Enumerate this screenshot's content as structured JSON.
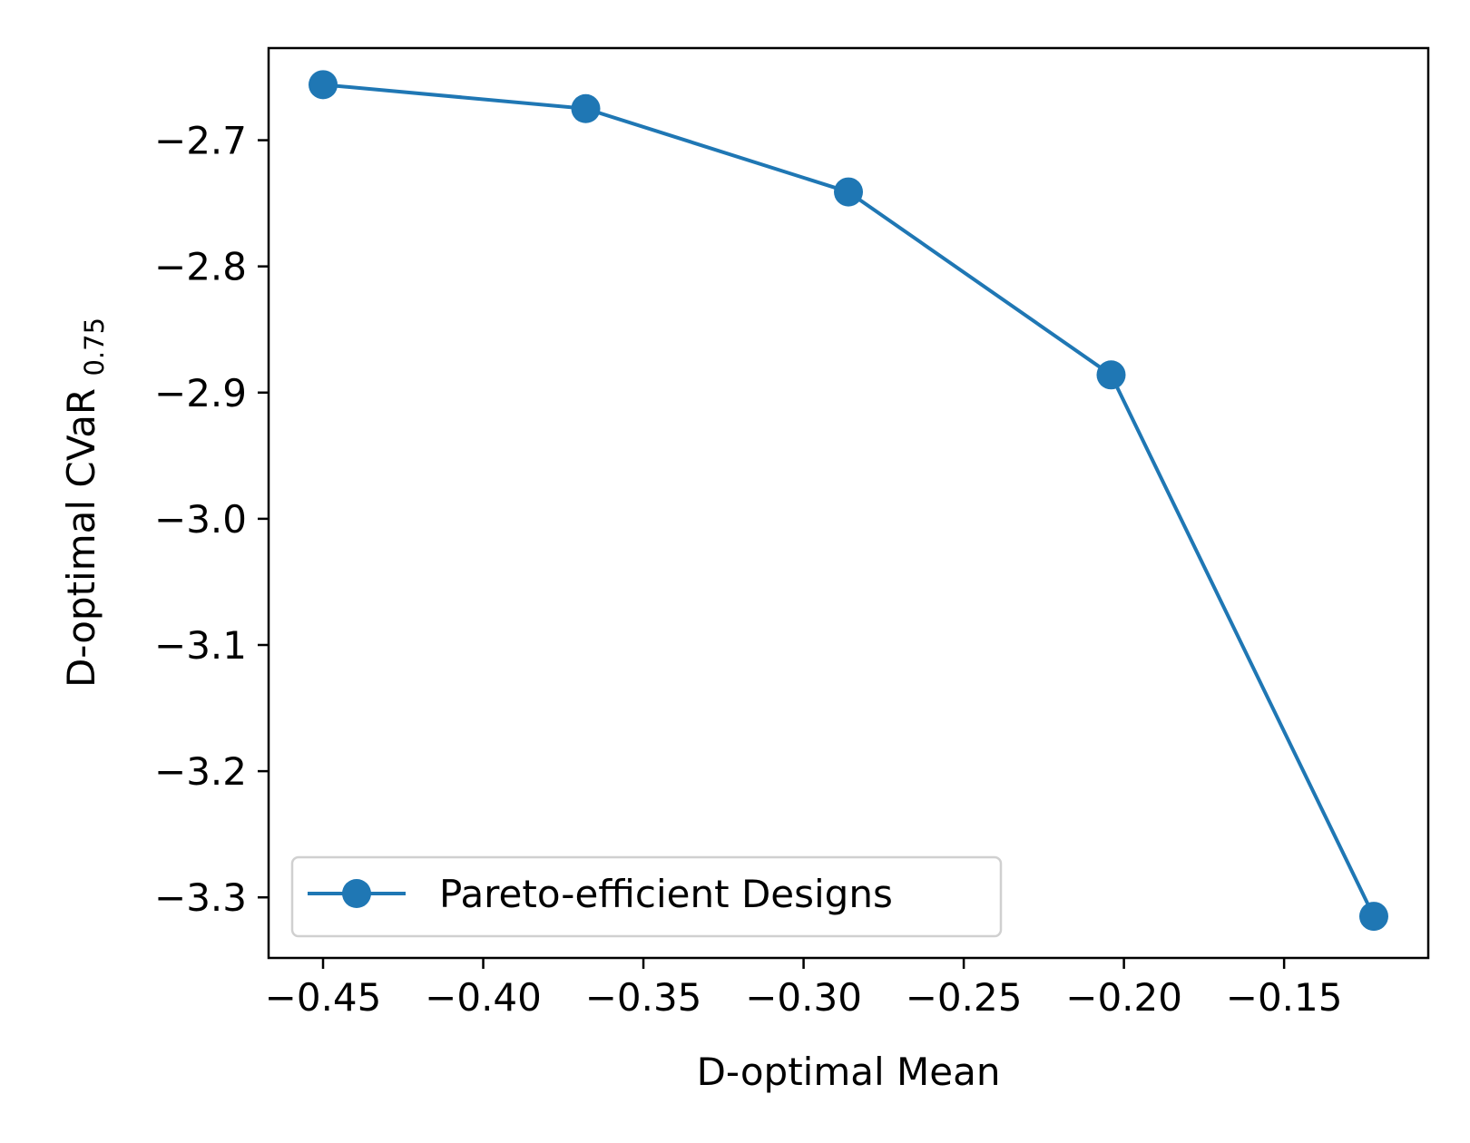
{
  "chart_data": {
    "type": "line",
    "xlabel": "D-optimal Mean",
    "ylabel": {
      "main": "D-optimal CVaR ",
      "subscript": "0.75"
    },
    "xlim": [
      -0.467,
      -0.105
    ],
    "ylim": [
      -3.348,
      -2.627
    ],
    "xticks": [
      -0.45,
      -0.4,
      -0.35,
      -0.3,
      -0.25,
      -0.2,
      -0.15
    ],
    "xtick_labels": [
      "−0.45",
      "−0.40",
      "−0.35",
      "−0.30",
      "−0.25",
      "−0.20",
      "−0.15"
    ],
    "yticks": [
      -2.7,
      -2.8,
      -2.9,
      -3.0,
      -3.1,
      -3.2,
      -3.3
    ],
    "ytick_labels": [
      "−2.7",
      "−2.8",
      "−2.9",
      "−3.0",
      "−3.1",
      "−3.2",
      "−3.3"
    ],
    "grid": false,
    "legend": {
      "placement": "lower-left"
    },
    "series": [
      {
        "name": "Pareto-efficient Designs",
        "color": "#1f77b4",
        "marker": "circle",
        "x": [
          -0.45,
          -0.368,
          -0.286,
          -0.204,
          -0.122
        ],
        "y": [
          -2.656,
          -2.675,
          -2.741,
          -2.886,
          -3.315
        ]
      }
    ]
  }
}
